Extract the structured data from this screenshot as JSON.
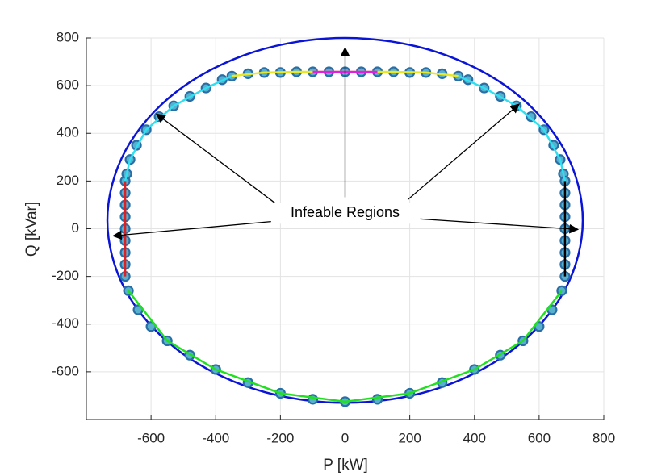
{
  "chart_data": {
    "type": "line",
    "xlabel": "P [kW]",
    "ylabel": "Q [kVar]",
    "xlim": [
      -800,
      800
    ],
    "ylim": [
      -800,
      800
    ],
    "xticks": [
      -600,
      -400,
      -200,
      0,
      200,
      400,
      600,
      800
    ],
    "yticks": [
      -600,
      -400,
      -200,
      0,
      200,
      400,
      600,
      800
    ],
    "grid": true,
    "series": [
      {
        "style": "smooth-line",
        "color": "#0a14d6",
        "x": [
          735,
          679,
          520,
          281,
          0,
          -281,
          -520,
          -679,
          -735,
          -679,
          -520,
          -281,
          0,
          281,
          520,
          679,
          735
        ],
        "y": [
          35,
          328,
          576,
          742,
          800,
          742,
          576,
          328,
          35,
          -258,
          -506,
          -672,
          -730,
          -672,
          -506,
          -258,
          35
        ]
      },
      {
        "style": "markers",
        "color": "#2a6ea6",
        "x": [
          -350,
          -300,
          -250,
          -200,
          -150,
          -100,
          -50,
          0,
          50,
          100,
          150,
          200,
          250,
          300,
          350,
          380,
          430,
          480,
          530,
          575,
          615,
          645,
          665,
          675,
          680,
          680,
          680,
          680,
          680,
          680,
          680,
          680,
          680,
          670,
          640,
          600,
          550,
          480,
          400,
          300,
          200,
          100,
          0,
          -100,
          -200,
          -300,
          -400,
          -480,
          -550,
          -600,
          -640,
          -670,
          -680,
          -680,
          -680,
          -680,
          -680,
          -680,
          -680,
          -680,
          -680,
          -675,
          -665,
          -645,
          -615,
          -575,
          -530,
          -480,
          -430,
          -380
        ],
        "y": [
          640,
          650,
          655,
          655,
          658,
          658,
          658,
          658,
          658,
          658,
          658,
          655,
          655,
          650,
          640,
          625,
          590,
          555,
          515,
          470,
          415,
          350,
          290,
          230,
          200,
          150,
          100,
          50,
          0,
          -50,
          -100,
          -150,
          -200,
          -260,
          -340,
          -410,
          -470,
          -530,
          -590,
          -645,
          -690,
          -715,
          -725,
          -715,
          -690,
          -645,
          -590,
          -530,
          -470,
          -410,
          -340,
          -260,
          -200,
          -150,
          -100,
          -50,
          0,
          50,
          100,
          150,
          200,
          230,
          290,
          350,
          415,
          470,
          515,
          555,
          590,
          625
        ]
      },
      {
        "style": "line",
        "color": "#e8e82a",
        "x": [
          -350,
          -250,
          -150,
          -50,
          50,
          150,
          250,
          350
        ],
        "y": [
          640,
          655,
          658,
          658,
          658,
          658,
          655,
          640
        ]
      },
      {
        "style": "line",
        "color": "#e020e0",
        "x": [
          -100,
          100
        ],
        "y": [
          658,
          658
        ]
      },
      {
        "style": "line",
        "color": "#30e0f0",
        "x": [
          350,
          430,
          530,
          615,
          665,
          680
        ],
        "y": [
          640,
          590,
          515,
          415,
          290,
          200
        ]
      },
      {
        "style": "line",
        "color": "#30e0f0",
        "x": [
          -350,
          -430,
          -530,
          -615,
          -665,
          -680
        ],
        "y": [
          640,
          590,
          515,
          415,
          290,
          200
        ]
      },
      {
        "style": "line",
        "color": "#000000",
        "x": [
          680,
          680
        ],
        "y": [
          200,
          -200
        ]
      },
      {
        "style": "line",
        "color": "#e02020",
        "x": [
          -680,
          -680
        ],
        "y": [
          200,
          -200
        ]
      },
      {
        "style": "line",
        "color": "#20e020",
        "x": [
          -670,
          -550,
          -400,
          -200,
          0,
          200,
          400,
          550,
          670
        ],
        "y": [
          -260,
          -470,
          -590,
          -690,
          -725,
          -690,
          -590,
          -470,
          -260
        ]
      }
    ],
    "annotation": {
      "text": "Infeable Regions",
      "x": 0,
      "y": 65,
      "arrows": [
        {
          "x1": -229,
          "y1": 30,
          "x2": -717,
          "y2": -30
        },
        {
          "x1": -217,
          "y1": 108,
          "x2": -583,
          "y2": 481
        },
        {
          "x1": 0,
          "y1": 132,
          "x2": 0,
          "y2": 759
        },
        {
          "x1": 194,
          "y1": 122,
          "x2": 538,
          "y2": 522
        },
        {
          "x1": 232,
          "y1": 41,
          "x2": 720,
          "y2": -3
        }
      ]
    }
  }
}
